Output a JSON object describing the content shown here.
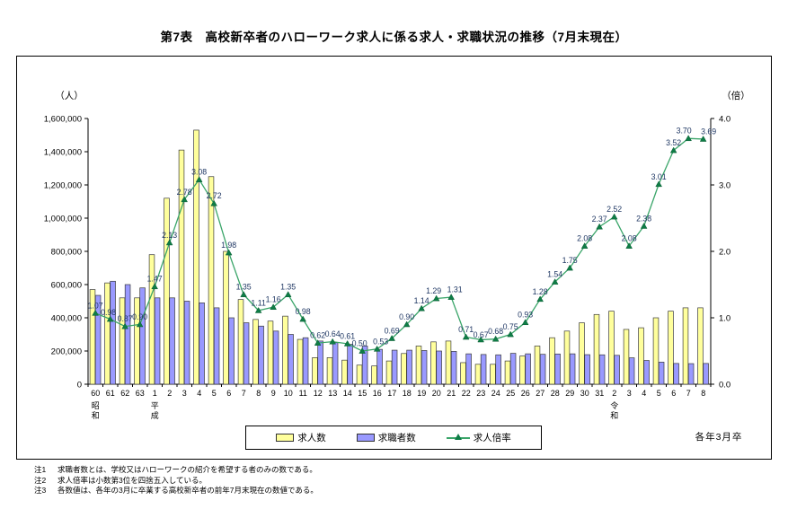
{
  "page": {
    "title": "第7表　高校新卒者のハローワーク求人に係る求人・求職状況の推移（7月末現在）",
    "footer_right": "各年3月卒"
  },
  "legend": {
    "items": [
      {
        "label": "求人数",
        "swatch_color": "#ffff9c"
      },
      {
        "label": "求職者数",
        "swatch_color": "#9999ff"
      },
      {
        "label": "求人倍率",
        "line_color": "#3aa569"
      }
    ]
  },
  "notes": [
    {
      "label": "注1",
      "text": "求職者数とは、学校又はハローワークの紹介を希望する者のみの数である。"
    },
    {
      "label": "注2",
      "text": "求人倍率は小数第3位を四捨五入している。"
    },
    {
      "label": "注3",
      "text": "各数値は、各年の3月に卒業する高校新卒者の前年7月末現在の数値である。"
    }
  ],
  "chart_data": {
    "type": "bar+line",
    "categories": [
      "60",
      "61",
      "62",
      "63",
      "1",
      "2",
      "3",
      "4",
      "5",
      "6",
      "7",
      "8",
      "9",
      "10",
      "11",
      "12",
      "13",
      "14",
      "15",
      "16",
      "17",
      "18",
      "19",
      "20",
      "21",
      "22",
      "23",
      "24",
      "25",
      "26",
      "27",
      "28",
      "29",
      "30",
      "31",
      "2",
      "3",
      "4",
      "5",
      "6",
      "7",
      "8"
    ],
    "era_labels": [
      {
        "index": 0,
        "text": "昭和"
      },
      {
        "index": 4,
        "text": "平成"
      },
      {
        "index": 35,
        "text": "令和"
      }
    ],
    "left_axis": {
      "label": "（人）",
      "min": 0,
      "max": 1600000,
      "step": 200000
    },
    "right_axis": {
      "label": "（倍）",
      "min": 0,
      "max": 4.0,
      "step": 1.0
    },
    "series": [
      {
        "name": "求人数",
        "type": "bar",
        "axis": "left",
        "color": "#ffff9c",
        "values": [
          570000,
          610000,
          520000,
          520000,
          780000,
          1120000,
          1410000,
          1530000,
          1250000,
          800000,
          510000,
          390000,
          380000,
          410000,
          270000,
          160000,
          160000,
          145000,
          115000,
          110000,
          140000,
          185000,
          230000,
          255000,
          260000,
          130000,
          120000,
          120000,
          140000,
          170000,
          230000,
          280000,
          320000,
          370000,
          420000,
          440000,
          330000,
          340000,
          400000,
          440000,
          460000,
          460000
        ]
      },
      {
        "name": "求職者数",
        "type": "bar",
        "axis": "left",
        "color": "#9999ff",
        "values": [
          535000,
          620000,
          600000,
          580000,
          520000,
          520000,
          500000,
          490000,
          460000,
          400000,
          370000,
          350000,
          320000,
          300000,
          280000,
          260000,
          250000,
          240000,
          230000,
          210000,
          205000,
          205000,
          203000,
          200000,
          198000,
          183000,
          179000,
          177000,
          186000,
          183000,
          180000,
          182000,
          183000,
          178000,
          177000,
          174000,
          159000,
          143000,
          133000,
          125000,
          124000,
          125000
        ]
      },
      {
        "name": "求人倍率",
        "type": "line",
        "axis": "right",
        "color": "#3aa569",
        "marker_color": "#0e7d46",
        "label_color": "#203864",
        "values": [
          1.07,
          0.98,
          0.87,
          0.9,
          1.47,
          2.13,
          2.78,
          3.08,
          2.72,
          1.98,
          1.35,
          1.11,
          1.16,
          1.35,
          0.98,
          0.62,
          0.64,
          0.61,
          0.5,
          0.53,
          0.69,
          0.9,
          1.14,
          1.29,
          1.31,
          0.71,
          0.67,
          0.68,
          0.75,
          0.93,
          1.28,
          1.54,
          1.75,
          2.08,
          2.37,
          2.52,
          2.08,
          2.38,
          3.01,
          3.52,
          3.7,
          3.69
        ]
      }
    ]
  }
}
